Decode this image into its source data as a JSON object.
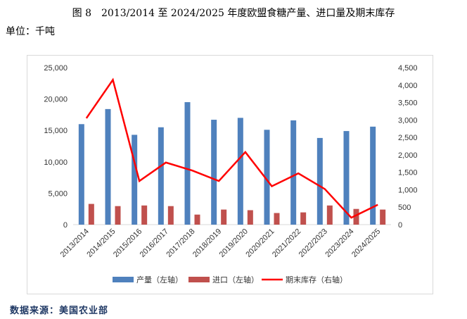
{
  "title": "图 8　2013/2014 至 2024/2025 年度欧盟食糖产量、进口量及期末库存",
  "unit": "单位：千吨",
  "source": "数据来源：美国农业部",
  "colors": {
    "production": "#4f81bd",
    "imports": "#c0504d",
    "stocks": "#ff0000",
    "grid": "#d9d9d9"
  },
  "chart_data": {
    "type": "bar",
    "categories": [
      "2013/2014",
      "2014/2015",
      "2015/2016",
      "2016/2017",
      "2017/2018",
      "2018/2019",
      "2019/2020",
      "2020/2021",
      "2021/2022",
      "2022/2023",
      "2023/2024",
      "2024/2025"
    ],
    "series": [
      {
        "name": "产量（左轴）",
        "type": "bar",
        "axis": "left",
        "values": [
          16000,
          18400,
          14300,
          15500,
          19500,
          16700,
          17000,
          15100,
          16600,
          13800,
          14900,
          15600
        ]
      },
      {
        "name": "进口（左轴）",
        "type": "bar",
        "axis": "left",
        "values": [
          3300,
          2950,
          3050,
          2950,
          1600,
          2400,
          2300,
          1850,
          1950,
          3050,
          2500,
          2400
        ]
      },
      {
        "name": "期末库存（右轴）",
        "type": "line",
        "axis": "right",
        "values": [
          3050,
          4150,
          1250,
          1780,
          1550,
          1250,
          2080,
          1100,
          1470,
          1020,
          200,
          570
        ]
      }
    ],
    "left_axis": {
      "ylim": [
        0,
        25000
      ],
      "ticks": [
        "0",
        "5,000",
        "10,000",
        "15,000",
        "20,000",
        "25,000"
      ]
    },
    "right_axis": {
      "ylim": [
        0,
        4500
      ],
      "ticks": [
        "0",
        "500",
        "1,000",
        "1,500",
        "2,000",
        "2,500",
        "3,000",
        "3,500",
        "4,000",
        "4,500"
      ]
    },
    "grid": false,
    "legend_position": "bottom"
  }
}
